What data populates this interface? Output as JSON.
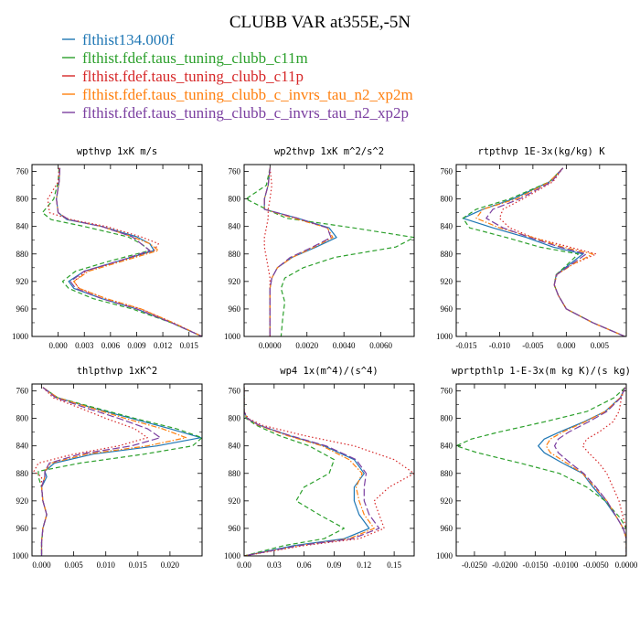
{
  "title": "CLUBB VAR at355E,-5N",
  "legend": [
    {
      "label": "flthist134.000f",
      "color": "#1f77b4",
      "dash": "solid"
    },
    {
      "label": "flthist.fdef.taus_tuning_clubb_c11m",
      "color": "#2ca02c",
      "dash": "dash"
    },
    {
      "label": "flthist.fdef.taus_tuning_clubb_c11p",
      "color": "#d62728",
      "dash": "dot"
    },
    {
      "label": "flthist.fdef.taus_tuning_clubb_c_invrs_tau_n2_xp2m",
      "color": "#ff7f0e",
      "dash": "dashdot"
    },
    {
      "label": "flthist.fdef.taus_tuning_clubb_c_invrs_tau_n2_xp2p",
      "color": "#7b3fa0",
      "dash": "longdash"
    }
  ],
  "chart_data": [
    {
      "type": "line",
      "title": "wpthvp   1xK m/s",
      "ylim": [
        1000,
        750
      ],
      "yticks": [
        760,
        800,
        840,
        880,
        920,
        960,
        1000
      ],
      "xlim": [
        -0.003,
        0.0165
      ],
      "xticks": [
        0.0,
        0.003,
        0.006,
        0.009,
        0.012,
        0.015
      ],
      "xtick_labels": [
        "0.000",
        "0.003",
        "0.006",
        "0.009",
        "0.012",
        "0.015"
      ],
      "y": [
        755,
        775,
        800,
        820,
        830,
        840,
        855,
        865,
        875,
        890,
        905,
        920,
        930,
        945,
        960,
        980,
        1000
      ],
      "series": [
        {
          "values": [
            0.0002,
            0.0001,
            -0.0002,
            0.0,
            0.001,
            0.005,
            0.009,
            0.0105,
            0.011,
            0.007,
            0.003,
            0.0012,
            0.0018,
            0.005,
            0.009,
            0.013,
            0.0165
          ]
        },
        {
          "values": [
            0.0001,
            0.0,
            -0.0005,
            -0.0018,
            -0.0008,
            0.003,
            0.008,
            0.0095,
            0.0105,
            0.006,
            0.002,
            0.0005,
            0.0012,
            0.004,
            0.0085,
            0.013,
            0.0165
          ]
        },
        {
          "values": [
            0.0001,
            0.0,
            -0.0012,
            -0.001,
            0.0015,
            0.0055,
            0.0095,
            0.0115,
            0.011,
            0.0072,
            0.0032,
            0.0018,
            0.0024,
            0.0055,
            0.0095,
            0.0132,
            0.0165
          ]
        },
        {
          "values": [
            0.0002,
            0.0001,
            -0.0002,
            0.0,
            0.0012,
            0.005,
            0.0085,
            0.0105,
            0.0115,
            0.0075,
            0.0035,
            0.0018,
            0.0024,
            0.0055,
            0.0095,
            0.0132,
            0.0165
          ]
        },
        {
          "values": [
            0.0002,
            0.0001,
            -0.0002,
            0.0,
            0.0012,
            0.005,
            0.0085,
            0.0095,
            0.0105,
            0.007,
            0.003,
            0.0014,
            0.002,
            0.005,
            0.009,
            0.013,
            0.0165
          ]
        }
      ]
    },
    {
      "type": "line",
      "title": "wp2thvp   1xK m^2/s^2",
      "ylim": [
        1000,
        750
      ],
      "yticks": [
        760,
        800,
        840,
        880,
        920,
        960,
        1000
      ],
      "xlim": [
        -0.0014,
        0.0078
      ],
      "xticks": [
        0.0,
        0.002,
        0.004,
        0.006
      ],
      "xtick_labels": [
        "0.0000",
        "0.0020",
        "0.0040",
        "0.0060"
      ],
      "y": [
        755,
        780,
        800,
        815,
        828,
        842,
        856,
        870,
        885,
        900,
        915,
        930,
        950,
        970,
        1000
      ],
      "series": [
        {
          "values": [
            0.0,
            -0.0001,
            -0.0003,
            -0.0003,
            0.0015,
            0.0032,
            0.0036,
            0.0025,
            0.0012,
            0.0004,
            0.0001,
            0.0,
            0.0,
            0.0,
            0.0
          ]
        },
        {
          "values": [
            0.0,
            -0.0002,
            -0.0013,
            -0.0002,
            0.0009,
            0.0045,
            0.0078,
            0.0068,
            0.0035,
            0.0018,
            0.0008,
            0.0006,
            0.0008,
            0.0007,
            0.0006
          ]
        },
        {
          "values": [
            0.0,
            0.0001,
            0.0,
            -0.0001,
            -0.0001,
            -0.0002,
            -0.0003,
            -0.0003,
            -0.0002,
            -0.0001,
            0.0,
            0.0,
            0.0,
            0.0,
            0.0
          ]
        },
        {
          "values": [
            0.0,
            -0.0001,
            -0.0003,
            -0.0003,
            0.0013,
            0.0031,
            0.0034,
            0.0024,
            0.0012,
            0.0004,
            0.0001,
            0.0,
            0.0,
            0.0,
            0.0
          ]
        },
        {
          "values": [
            0.0,
            -0.0001,
            -0.0003,
            -0.0003,
            0.0015,
            0.0031,
            0.0033,
            0.0023,
            0.0011,
            0.0004,
            0.0001,
            0.0,
            0.0,
            0.0,
            0.0
          ]
        }
      ]
    },
    {
      "type": "line",
      "title": "rtpthvp   1E-3x(kg/kg) K",
      "ylim": [
        1000,
        750
      ],
      "yticks": [
        760,
        800,
        840,
        880,
        920,
        960,
        1000
      ],
      "xlim": [
        -0.0165,
        0.009
      ],
      "xticks": [
        -0.015,
        -0.01,
        -0.005,
        0.0,
        0.005
      ],
      "xtick_labels": [
        "-0.015",
        "-0.010",
        "-0.005",
        "0.000",
        "0.005"
      ],
      "y": [
        755,
        775,
        800,
        815,
        828,
        842,
        856,
        870,
        880,
        895,
        910,
        925,
        940,
        960,
        980,
        1000
      ],
      "series": [
        {
          "values": [
            -0.0005,
            -0.0025,
            -0.008,
            -0.0125,
            -0.0155,
            -0.011,
            -0.006,
            -0.002,
            0.0025,
            0.0005,
            -0.0015,
            -0.0018,
            -0.0012,
            0.0,
            0.004,
            0.0088
          ]
        },
        {
          "values": [
            -0.0005,
            -0.0025,
            -0.0085,
            -0.0135,
            -0.0155,
            -0.0145,
            -0.009,
            -0.004,
            0.0018,
            0.0002,
            -0.0015,
            -0.0018,
            -0.0012,
            0.0,
            0.004,
            0.0088
          ]
        },
        {
          "values": [
            -0.0005,
            -0.002,
            -0.0065,
            -0.0095,
            -0.01,
            -0.0085,
            -0.005,
            0.0005,
            0.0045,
            0.001,
            -0.0015,
            -0.0018,
            -0.0012,
            0.0,
            0.004,
            0.0088
          ]
        },
        {
          "values": [
            -0.0005,
            -0.0025,
            -0.0075,
            -0.0125,
            -0.0135,
            -0.01,
            -0.005,
            -0.0005,
            0.004,
            0.001,
            -0.0014,
            -0.0018,
            -0.0012,
            0.0,
            0.004,
            0.0088
          ]
        },
        {
          "values": [
            -0.0005,
            -0.0022,
            -0.007,
            -0.011,
            -0.012,
            -0.0095,
            -0.0055,
            -0.001,
            0.003,
            0.0008,
            -0.0014,
            -0.0018,
            -0.0012,
            0.0,
            0.004,
            0.0088
          ]
        }
      ]
    },
    {
      "type": "line",
      "title": "thlpthvp   1xK^2",
      "ylim": [
        1000,
        750
      ],
      "yticks": [
        760,
        800,
        840,
        880,
        920,
        960,
        1000
      ],
      "xlim": [
        -0.0015,
        0.025
      ],
      "xticks": [
        0.0,
        0.005,
        0.01,
        0.015,
        0.02
      ],
      "xtick_labels": [
        "0.000",
        "0.005",
        "0.010",
        "0.015",
        "0.020"
      ],
      "y": [
        755,
        770,
        785,
        800,
        815,
        828,
        840,
        852,
        865,
        877,
        885,
        900,
        920,
        940,
        960,
        980,
        1000
      ],
      "series": [
        {
          "values": [
            0.0002,
            0.0025,
            0.008,
            0.014,
            0.02,
            0.0248,
            0.018,
            0.008,
            0.002,
            0.0005,
            0.0008,
            0.0,
            0.0002,
            0.0008,
            0.0002,
            0.0,
            0.0
          ]
        },
        {
          "values": [
            0.0002,
            0.0025,
            0.0085,
            0.0145,
            0.021,
            0.025,
            0.0235,
            0.016,
            0.006,
            -0.0005,
            -0.0005,
            0.0,
            0.0002,
            0.0008,
            0.0002,
            0.0,
            0.0
          ]
        },
        {
          "values": [
            0.0002,
            0.0018,
            0.006,
            0.01,
            0.0145,
            0.0165,
            0.012,
            0.005,
            -0.0005,
            -0.0012,
            0.0,
            0.0,
            0.0002,
            0.0008,
            0.0002,
            0.0,
            0.0
          ]
        },
        {
          "values": [
            0.0002,
            0.0025,
            0.0078,
            0.013,
            0.0188,
            0.0225,
            0.0165,
            0.007,
            0.0015,
            0.0005,
            0.0005,
            0.0,
            0.0002,
            0.0008,
            0.0002,
            0.0,
            0.0
          ]
        },
        {
          "values": [
            0.0002,
            0.0022,
            0.007,
            0.012,
            0.0165,
            0.0185,
            0.014,
            0.006,
            0.0012,
            0.0005,
            0.0005,
            0.0,
            0.0002,
            0.0008,
            0.0002,
            0.0,
            0.0
          ]
        }
      ]
    },
    {
      "type": "line",
      "title": "wp4   1x(m^4)/(s^4)",
      "ylim": [
        1000,
        750
      ],
      "yticks": [
        760,
        800,
        840,
        880,
        920,
        960,
        1000
      ],
      "xlim": [
        0.0,
        0.17
      ],
      "xticks": [
        0.0,
        0.03,
        0.06,
        0.09,
        0.12,
        0.15
      ],
      "xtick_labels": [
        "0.00",
        "0.03",
        "0.06",
        "0.09",
        "0.12",
        "0.15"
      ],
      "y": [
        755,
        790,
        800,
        810,
        825,
        840,
        860,
        880,
        900,
        920,
        940,
        960,
        975,
        985,
        1000
      ],
      "series": [
        {
          "values": [
            0.0,
            0.0,
            0.003,
            0.015,
            0.045,
            0.08,
            0.11,
            0.12,
            0.11,
            0.11,
            0.115,
            0.125,
            0.1,
            0.05,
            0.0
          ]
        },
        {
          "values": [
            0.0,
            0.0,
            0.002,
            0.012,
            0.035,
            0.065,
            0.09,
            0.085,
            0.06,
            0.052,
            0.075,
            0.1,
            0.08,
            0.04,
            0.0
          ]
        },
        {
          "values": [
            0.0,
            0.0,
            0.004,
            0.018,
            0.06,
            0.11,
            0.15,
            0.17,
            0.145,
            0.13,
            0.135,
            0.14,
            0.115,
            0.06,
            0.0
          ]
        },
        {
          "values": [
            0.0,
            0.0,
            0.003,
            0.014,
            0.043,
            0.078,
            0.105,
            0.118,
            0.112,
            0.115,
            0.12,
            0.13,
            0.105,
            0.055,
            0.0
          ]
        },
        {
          "values": [
            0.0,
            0.0,
            0.003,
            0.015,
            0.046,
            0.082,
            0.112,
            0.122,
            0.12,
            0.12,
            0.125,
            0.135,
            0.108,
            0.055,
            0.0
          ]
        }
      ]
    },
    {
      "type": "line",
      "title": "wprtpthlp   1-E-3x(m kg K)/(s kg)",
      "ylim": [
        1000,
        750
      ],
      "yticks": [
        760,
        800,
        840,
        880,
        920,
        960,
        1000
      ],
      "xlim": [
        -0.028,
        0.0
      ],
      "xticks": [
        -0.025,
        -0.02,
        -0.015,
        -0.01,
        -0.005,
        0.0
      ],
      "xtick_labels": [
        "-0.0250",
        "-0.0200",
        "-0.0150",
        "-0.0100",
        "-0.0050",
        "0.0000"
      ],
      "y": [
        755,
        770,
        790,
        805,
        820,
        830,
        840,
        850,
        865,
        880,
        900,
        920,
        945,
        960,
        975,
        1000
      ],
      "series": [
        {
          "values": [
            -0.0002,
            -0.001,
            -0.0035,
            -0.007,
            -0.011,
            -0.0135,
            -0.0145,
            -0.0135,
            -0.0105,
            -0.0072,
            -0.0055,
            -0.0035,
            -0.0015,
            -0.0005,
            0.0,
            0.0
          ]
        },
        {
          "values": [
            -0.0002,
            -0.002,
            -0.0065,
            -0.0135,
            -0.021,
            -0.0255,
            -0.028,
            -0.0245,
            -0.0175,
            -0.011,
            -0.0065,
            -0.0035,
            -0.001,
            0.0,
            0.0,
            0.0
          ]
        },
        {
          "values": [
            -0.0002,
            -0.0008,
            -0.0012,
            -0.0022,
            -0.0045,
            -0.0065,
            -0.0072,
            -0.0062,
            -0.0045,
            -0.0032,
            -0.0022,
            -0.0012,
            -0.0005,
            0.0,
            0.0,
            0.0
          ]
        },
        {
          "values": [
            -0.0002,
            -0.001,
            -0.0035,
            -0.0068,
            -0.0105,
            -0.0125,
            -0.0132,
            -0.0125,
            -0.0098,
            -0.0072,
            -0.0052,
            -0.0032,
            -0.0015,
            -0.0005,
            0.0,
            0.0
          ]
        },
        {
          "values": [
            -0.0002,
            -0.0009,
            -0.0032,
            -0.0062,
            -0.0095,
            -0.0112,
            -0.0118,
            -0.0112,
            -0.0092,
            -0.007,
            -0.005,
            -0.0032,
            -0.0015,
            -0.0005,
            0.0,
            0.0
          ]
        }
      ]
    }
  ]
}
